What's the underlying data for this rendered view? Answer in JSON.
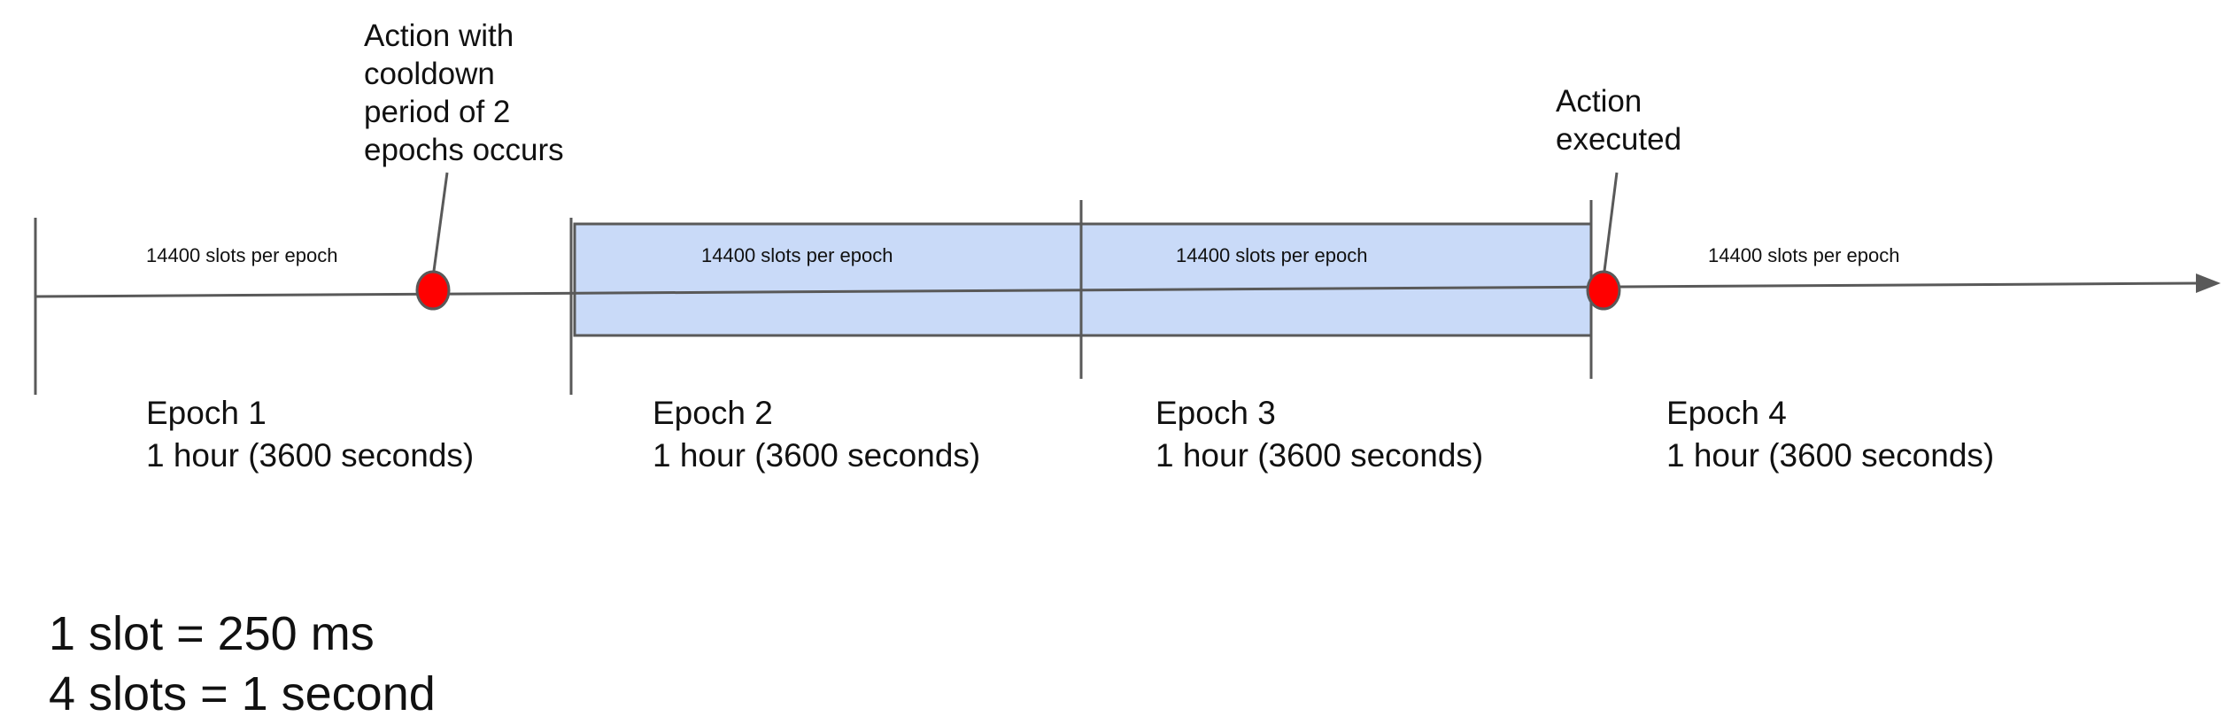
{
  "epochs": [
    {
      "name": "Epoch 1",
      "duration": "1 hour (3600 seconds)",
      "slots_label": "14400 slots per epoch"
    },
    {
      "name": "Epoch 2",
      "duration": "1 hour (3600 seconds)",
      "slots_label": "14400 slots per epoch"
    },
    {
      "name": "Epoch 3",
      "duration": "1 hour (3600 seconds)",
      "slots_label": "14400 slots per epoch"
    },
    {
      "name": "Epoch 4",
      "duration": "1 hour (3600 seconds)",
      "slots_label": "14400 slots per epoch"
    }
  ],
  "events": [
    {
      "lines": [
        "Action with",
        "cooldown",
        "period of 2",
        "epochs occurs"
      ]
    },
    {
      "lines": [
        "Action",
        "executed"
      ]
    }
  ],
  "notes": [
    "1 slot = 250 ms",
    "4 slots = 1 second"
  ],
  "colors": {
    "axis": "#595959",
    "cooldown_fill": "#c9daf8",
    "event_dot": "#ff0000",
    "text": "#111111"
  }
}
